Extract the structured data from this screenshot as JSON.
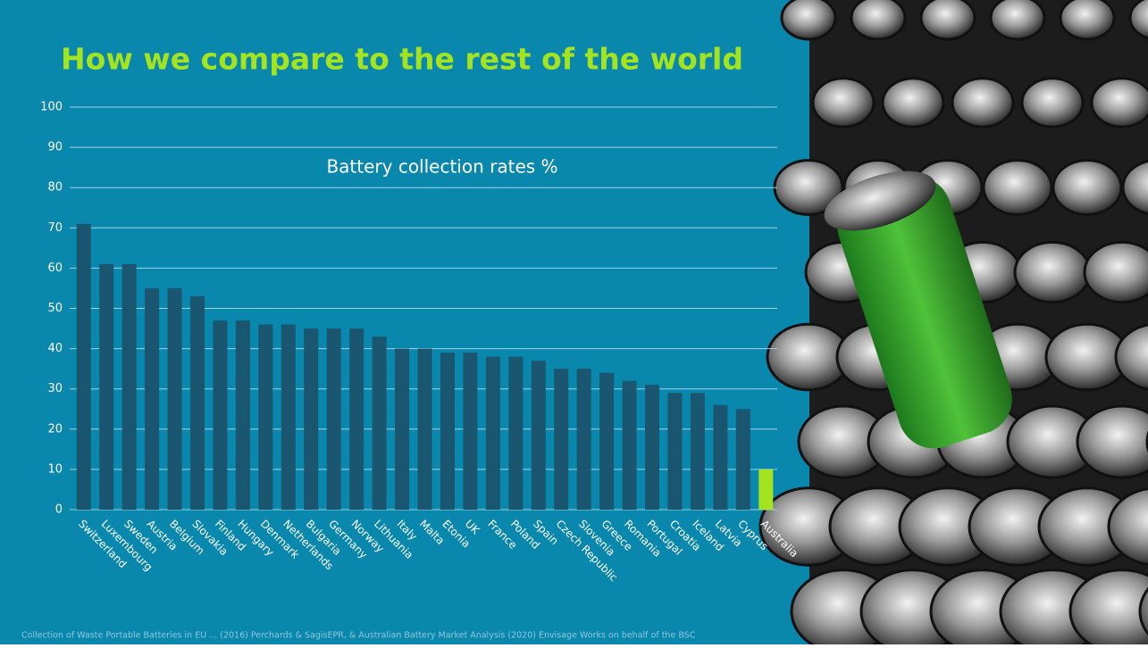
{
  "chart_data": {
    "type": "bar",
    "title": "How we compare to the rest of the world",
    "subtitle": "Battery collection rates %",
    "categories": [
      "Switzerland",
      "Luxembourg",
      "Sweden",
      "Austria",
      "Belgium",
      "Slovakia",
      "Finland",
      "Hungary",
      "Denmark",
      "Netherlands",
      "Bulgaria",
      "Germany",
      "Norway",
      "Lithuania",
      "Italy",
      "Malta",
      "Etonia",
      "UK",
      "France",
      "Poland",
      "Spain",
      "Czech Republic",
      "Slovenia",
      "Greece",
      "Romania",
      "Portugal",
      "Croatia",
      "Iceland",
      "Latvia",
      "Cyprus",
      "Australia"
    ],
    "values": [
      71,
      61,
      61,
      55,
      55,
      53,
      47,
      47,
      46,
      46,
      45,
      45,
      45,
      43,
      40,
      40,
      39,
      39,
      38,
      38,
      37,
      35,
      35,
      34,
      32,
      31,
      29,
      29,
      26,
      25,
      10
    ],
    "colors": [
      "#1b5670",
      "#1b5670",
      "#1b5670",
      "#1b5670",
      "#1b5670",
      "#1b5670",
      "#1b5670",
      "#1b5670",
      "#1b5670",
      "#1b5670",
      "#1b5670",
      "#1b5670",
      "#1b5670",
      "#1b5670",
      "#1b5670",
      "#1b5670",
      "#1b5670",
      "#1b5670",
      "#1b5670",
      "#1b5670",
      "#1b5670",
      "#1b5670",
      "#1b5670",
      "#1b5670",
      "#1b5670",
      "#1b5670",
      "#1b5670",
      "#1b5670",
      "#1b5670",
      "#1b5670",
      "#a4e41f"
    ],
    "ylim": [
      0,
      100
    ],
    "yticks": [
      0,
      10,
      20,
      30,
      40,
      50,
      60,
      70,
      80,
      90,
      100
    ],
    "grid": true,
    "source": "Collection of Waste Portable Batteries in EU ... (2016) Perchards & SagisEPR, & Australian Battery Market Analysis (2020) Envisage Works on behalf of the BSC"
  }
}
